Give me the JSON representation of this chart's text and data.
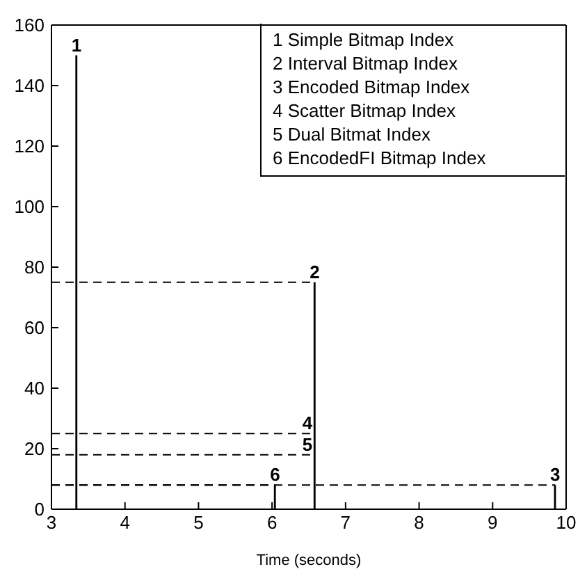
{
  "chart_data": {
    "type": "bar",
    "xlabel": "Time (seconds)",
    "x": [
      3.34,
      6.04,
      6.58,
      9.85
    ],
    "values": [
      150,
      8,
      75,
      8
    ],
    "color": "#000000",
    "series": [
      {
        "type": "line",
        "line_style": "dashed",
        "color": "#000000",
        "x": [
          3,
          6.58
        ],
        "values": [
          75,
          75
        ]
      },
      {
        "type": "line",
        "line_style": "dashed",
        "color": "#000000",
        "x": [
          3,
          9.85
        ],
        "values": [
          8,
          8
        ]
      },
      {
        "type": "line",
        "line_style": "dashed",
        "color": "#000000",
        "x": [
          3,
          6.55
        ],
        "values": [
          25,
          25
        ]
      },
      {
        "type": "line",
        "line_style": "dashed",
        "color": "#000000",
        "x": [
          3,
          6.55
        ],
        "values": [
          18,
          18
        ]
      },
      {
        "type": "line",
        "line_style": "dashed",
        "color": "#000000",
        "x": [
          3,
          6.04
        ],
        "values": [
          8,
          8
        ]
      }
    ],
    "annotations": [
      "1 Simple Bitmap Index",
      "2 Interval Bitmap Index",
      "3 Encoded Bitmap Index",
      "4 Scatter Bitmap Index",
      "5 Dual Bitmat Index",
      "6 EncodedFI Bitmap Index",
      {
        "text": "1",
        "x": 3.34,
        "y": 150
      },
      {
        "text": "2",
        "x": 6.58,
        "y": 75
      },
      {
        "text": "3",
        "x": 9.85,
        "y": 8
      },
      {
        "text": "4",
        "x": 6.48,
        "y": 25
      },
      {
        "text": "5",
        "x": 6.48,
        "y": 18
      },
      {
        "text": "6",
        "x": 6.04,
        "y": 8
      }
    ],
    "xlim": [
      3,
      10
    ],
    "xticks": [
      3,
      4,
      5,
      6,
      7,
      8,
      9,
      10
    ],
    "ylim": [
      0,
      160
    ],
    "yticks": [
      0,
      20,
      40,
      60,
      80,
      100,
      120,
      140,
      160
    ],
    "grid": false
  }
}
